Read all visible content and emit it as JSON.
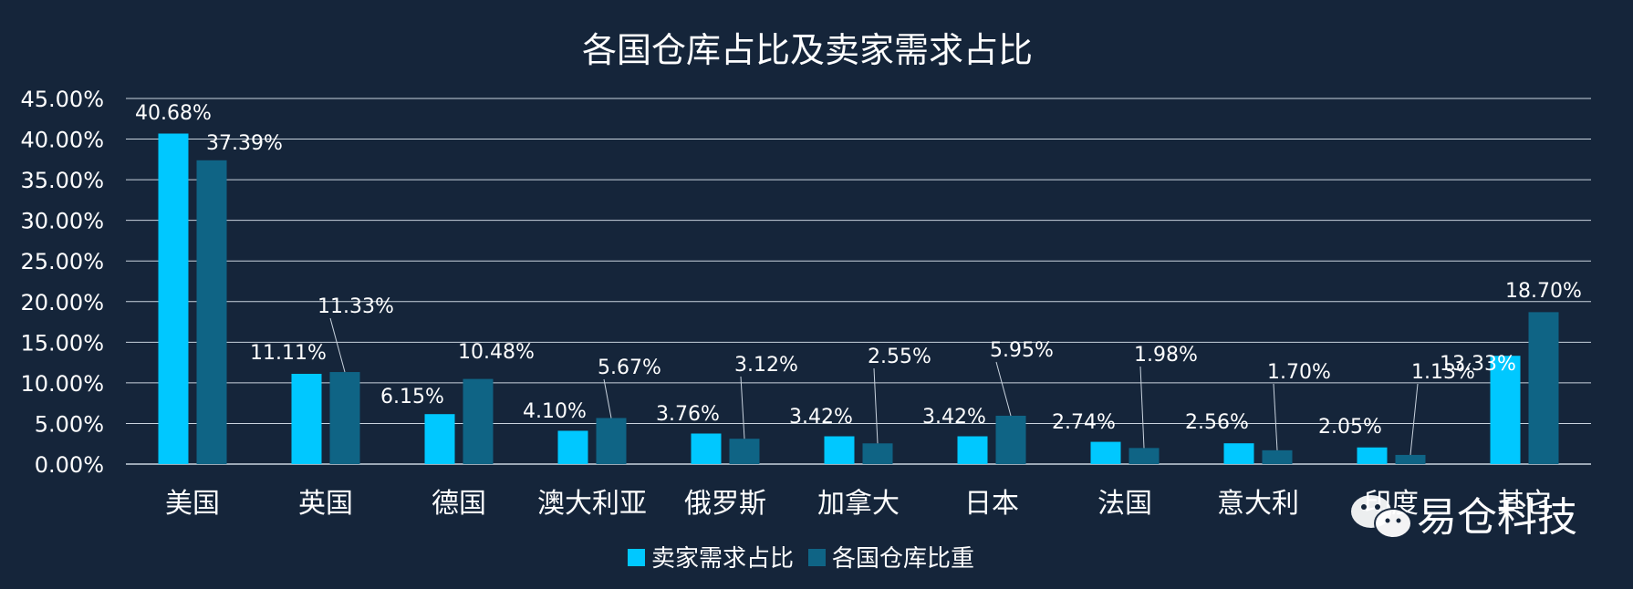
{
  "chart_data": {
    "type": "bar",
    "title": "各国仓库占比及卖家需求占比",
    "categories": [
      "美国",
      "英国",
      "德国",
      "澳大利亚",
      "俄罗斯",
      "加拿大",
      "日本",
      "法国",
      "意大利",
      "印度",
      "其它"
    ],
    "series": [
      {
        "name": "卖家需求占比",
        "color": "#00c8ff",
        "values": [
          40.68,
          11.11,
          6.15,
          4.1,
          3.76,
          3.42,
          3.42,
          2.74,
          2.56,
          2.05,
          13.33
        ],
        "labels": [
          "40.68%",
          "11.11%",
          "6.15%",
          "4.10%",
          "3.76%",
          "3.42%",
          "3.42%",
          "2.74%",
          "2.56%",
          "2.05%",
          "13.33%"
        ]
      },
      {
        "name": "各国仓库比重",
        "color": "#0f6485",
        "values": [
          37.39,
          11.33,
          10.48,
          5.67,
          3.12,
          2.55,
          5.95,
          1.98,
          1.7,
          1.13,
          18.7
        ],
        "labels": [
          "37.39%",
          "11.33%",
          "10.48%",
          "5.67%",
          "3.12%",
          "2.55%",
          "5.95%",
          "1.98%",
          "1.70%",
          "1.13%",
          "18.70%"
        ]
      }
    ],
    "yticks": [
      "0.00%",
      "5.00%",
      "10.00%",
      "15.00%",
      "20.00%",
      "25.00%",
      "30.00%",
      "35.00%",
      "40.00%",
      "45.00%"
    ],
    "ylim": [
      0,
      45
    ],
    "grid": true,
    "legend_position": "bottom"
  },
  "watermark": {
    "text": "易仓科技",
    "icon": "wechat-icon"
  },
  "colors": {
    "background": "#15253a",
    "grid": "#c9d3de",
    "text": "#ffffff"
  }
}
